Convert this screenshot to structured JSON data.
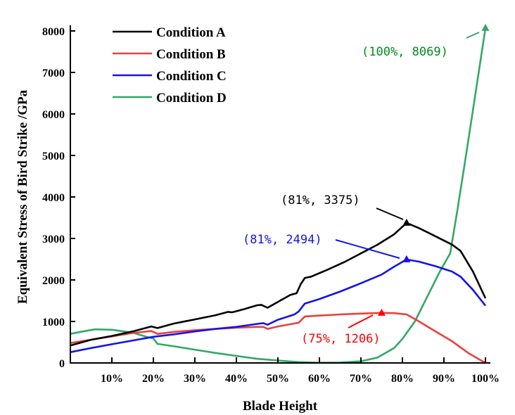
{
  "chart_data": {
    "type": "line",
    "title": "",
    "xlabel": "Blade Height",
    "ylabel": "Equivalent Stress of Bird Strike /GPa",
    "xlim": [
      0,
      100
    ],
    "ylim": [
      0,
      8000
    ],
    "x_ticks": [
      10,
      20,
      30,
      40,
      50,
      60,
      70,
      80,
      90,
      100
    ],
    "x_tick_labels": [
      "10%",
      "20%",
      "30%",
      "40%",
      "50%",
      "60%",
      "70%",
      "80%",
      "90%",
      "100%"
    ],
    "y_ticks": [
      0,
      1000,
      2000,
      3000,
      4000,
      5000,
      6000,
      7000,
      8000
    ],
    "y_tick_labels": [
      "0",
      "1000",
      "2000",
      "3000",
      "4000",
      "5000",
      "6000",
      "7000",
      "8000"
    ],
    "grid": false,
    "legend_position": "top-left",
    "series": [
      {
        "name": "Condition A",
        "color": "#000000",
        "x": [
          0,
          5,
          10,
          15,
          19.5,
          21,
          25,
          30,
          35,
          38,
          39,
          42,
          45,
          46,
          47.5,
          50,
          53,
          54.5,
          55.5,
          56.5,
          58,
          62,
          66,
          70,
          74,
          78,
          81,
          84,
          88,
          92,
          94,
          97,
          100
        ],
        "y": [
          420,
          560,
          650,
          760,
          880,
          840,
          950,
          1050,
          1150,
          1230,
          1220,
          1300,
          1390,
          1400,
          1330,
          1470,
          1640,
          1680,
          1900,
          2050,
          2080,
          2250,
          2430,
          2640,
          2850,
          3100,
          3375,
          3250,
          3050,
          2850,
          2700,
          2200,
          1560
        ]
      },
      {
        "name": "Condition B",
        "color": "#e8413f",
        "x": [
          0,
          5,
          10,
          15,
          19.5,
          21,
          25,
          30,
          35,
          40,
          45,
          46.5,
          47.5,
          50,
          54,
          55,
          56.5,
          60,
          65,
          70,
          75,
          78,
          81,
          84,
          88,
          92,
          96,
          100
        ],
        "y": [
          480,
          560,
          640,
          720,
          770,
          700,
          750,
          790,
          820,
          850,
          870,
          870,
          820,
          880,
          950,
          970,
          1120,
          1140,
          1170,
          1190,
          1206,
          1200,
          1170,
          1000,
          760,
          520,
          230,
          0
        ]
      },
      {
        "name": "Condition C",
        "color": "#1414e6",
        "x": [
          0,
          5,
          10,
          15,
          20,
          25,
          30,
          35,
          40,
          45,
          46.5,
          47.5,
          50,
          54,
          55,
          56.5,
          60,
          65,
          70,
          75,
          78,
          81,
          84,
          88,
          92,
          94,
          97,
          100
        ],
        "y": [
          260,
          360,
          450,
          540,
          630,
          690,
          760,
          820,
          870,
          940,
          960,
          920,
          1040,
          1170,
          1240,
          1430,
          1540,
          1720,
          1920,
          2130,
          2320,
          2494,
          2440,
          2330,
          2200,
          2080,
          1760,
          1380
        ]
      },
      {
        "name": "Condition D",
        "color": "#33a867",
        "x": [
          0,
          3,
          6,
          10,
          15,
          18,
          20,
          21,
          25,
          30,
          35,
          40,
          45,
          50,
          55,
          60,
          65,
          70,
          74,
          78,
          80,
          83,
          86,
          89,
          91.5,
          93.2,
          95,
          97,
          100
        ],
        "y": [
          700,
          760,
          810,
          800,
          730,
          640,
          590,
          460,
          400,
          320,
          240,
          170,
          100,
          60,
          20,
          5,
          10,
          40,
          130,
          360,
          580,
          1000,
          1600,
          2200,
          2640,
          3660,
          4800,
          6100,
          8069
        ]
      }
    ],
    "annotations": [
      {
        "text": "(81%,  3375)",
        "series": "Condition A",
        "x": 81,
        "y": 3375,
        "color": "#000000"
      },
      {
        "text": "(81%,  2494)",
        "series": "Condition C",
        "x": 81,
        "y": 2494,
        "color": "#1414e6"
      },
      {
        "text": "(75%,  1206)",
        "series": "Condition B",
        "x": 75,
        "y": 1206,
        "color": "#ff0000"
      },
      {
        "text": "(100%,  8069)",
        "series": "Condition D",
        "x": 100,
        "y": 8069,
        "color": "#008c1e"
      }
    ]
  }
}
